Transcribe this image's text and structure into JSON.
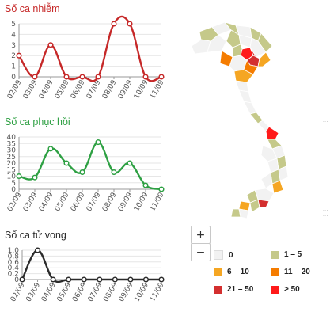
{
  "chart_data": [
    {
      "type": "line",
      "title": "Số ca nhiễm",
      "categories": [
        "02/09",
        "03/09",
        "04/09",
        "05/09",
        "06/09",
        "07/09",
        "08/09",
        "09/09",
        "10/09",
        "11/09"
      ],
      "series": [
        {
          "values": [
            2,
            0,
            3,
            0,
            0,
            0,
            5,
            5,
            0,
            0
          ]
        }
      ],
      "yticks": [
        0,
        1,
        2,
        3,
        4,
        5
      ],
      "ylim": [
        0,
        5
      ],
      "color": "#c62828"
    },
    {
      "type": "line",
      "title": "Số ca phục hồi",
      "categories": [
        "02/09",
        "03/09",
        "04/09",
        "05/09",
        "06/09",
        "07/09",
        "08/09",
        "09/09",
        "10/09",
        "11/09"
      ],
      "series": [
        {
          "values": [
            10,
            9,
            31,
            20,
            13,
            36,
            13,
            20,
            3,
            0
          ]
        }
      ],
      "yticks": [
        0,
        5,
        10,
        15,
        20,
        25,
        30,
        35,
        40
      ],
      "ylim": [
        0,
        40
      ],
      "color": "#2ea043"
    },
    {
      "type": "line",
      "title": "Số ca tử vong",
      "categories": [
        "02/09",
        "03/09",
        "04/09",
        "05/09",
        "06/09",
        "07/09",
        "08/09",
        "09/09",
        "10/09",
        "11/09"
      ],
      "series": [
        {
          "values": [
            0,
            1,
            0,
            0,
            0,
            0,
            0,
            0,
            0,
            0
          ]
        }
      ],
      "yticks": [
        "0",
        "0.2",
        "0.4",
        "0.6",
        "0.8",
        "1.0"
      ],
      "ylim": [
        0,
        1
      ],
      "color": "#2b2b2b"
    }
  ],
  "map": {
    "zoom_in": "+",
    "zoom_out": "−",
    "legend": [
      {
        "label": "0",
        "color": "#f2f2f2"
      },
      {
        "label": "1 – 5",
        "color": "#c5c98a"
      },
      {
        "label": "6 – 10",
        "color": "#f5a623"
      },
      {
        "label": "11 – 20",
        "color": "#f57c00"
      },
      {
        "label": "21 – 50",
        "color": "#d32f2f"
      },
      {
        "label": "> 50",
        "color": "#ff1a1a"
      }
    ]
  }
}
